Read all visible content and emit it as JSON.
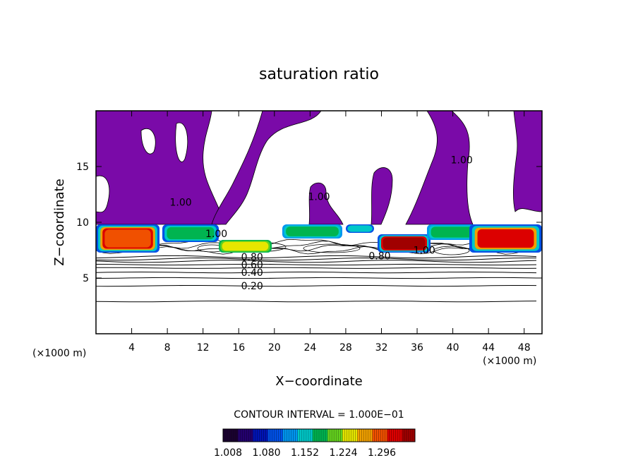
{
  "chart_data": {
    "type": "contour",
    "title": "saturation ratio",
    "xlabel": "X−coordinate",
    "ylabel": "Z−coordinate",
    "x_unit_left": "(×1000 m)",
    "x_unit_right": "(×1000 m)",
    "xlim": [
      0,
      50
    ],
    "ylim": [
      0,
      20
    ],
    "x_ticks": [
      4,
      8,
      12,
      16,
      20,
      24,
      28,
      32,
      36,
      40,
      44,
      48
    ],
    "y_ticks": [
      5,
      10,
      15
    ],
    "contour_interval_text": "CONTOUR INTERVAL = 1.000E−01",
    "contour_labels": [
      {
        "text": "0.20",
        "x": 17.5,
        "z": 4.3
      },
      {
        "text": "0.40",
        "x": 17.5,
        "z": 5.5
      },
      {
        "text": "0.60",
        "x": 17.5,
        "z": 6.2
      },
      {
        "text": "0.80",
        "x": 17.5,
        "z": 6.9
      },
      {
        "text": "0.80",
        "x": 31.8,
        "z": 7.0
      },
      {
        "text": "1.00",
        "x": 13.5,
        "z": 9.0
      },
      {
        "text": "1.00",
        "x": 36.8,
        "z": 7.5
      },
      {
        "text": "1.00",
        "x": 9.5,
        "z": 11.8
      },
      {
        "text": "1.00",
        "x": 25.0,
        "z": 12.3
      },
      {
        "text": "1.00",
        "x": 41.0,
        "z": 15.6
      }
    ],
    "colorbar": {
      "tick_labels": [
        "1.008",
        "1.080",
        "1.152",
        "1.224",
        "1.296"
      ],
      "colors": [
        "#1a0030",
        "#24006e",
        "#0014b4",
        "#0050e6",
        "#0096f0",
        "#00c8c8",
        "#00b450",
        "#64d21e",
        "#e6e600",
        "#f0a000",
        "#f05000",
        "#dc0000",
        "#a00000"
      ],
      "min_region_color": "#7a0aa8"
    },
    "background_contours_z": [
      2.9,
      4.3,
      5.0,
      5.5,
      5.9,
      6.2,
      6.5,
      6.7,
      6.9
    ]
  }
}
